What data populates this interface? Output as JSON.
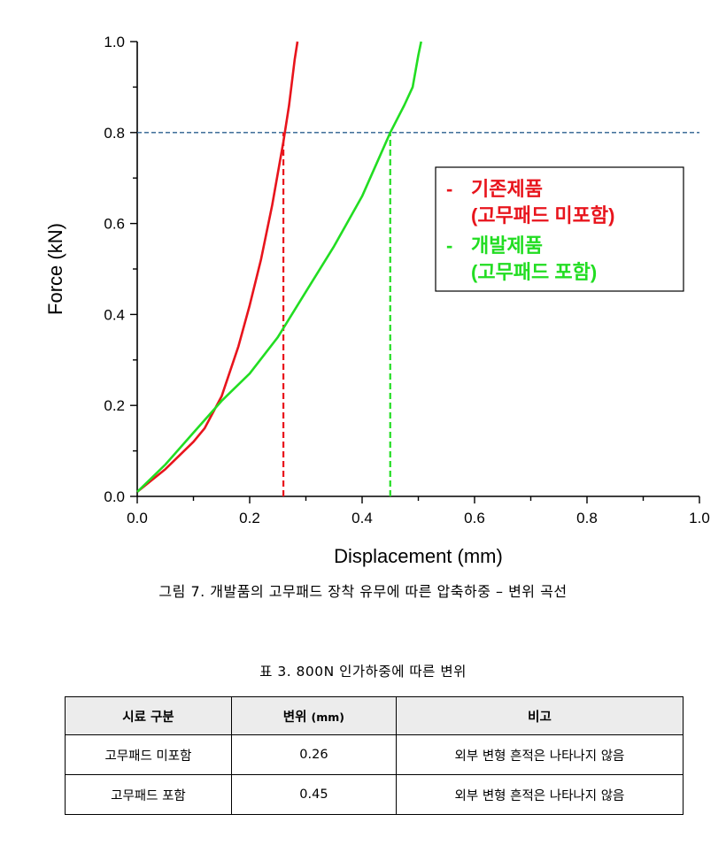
{
  "chart_data": {
    "type": "line",
    "xlabel": "Displacement (mm)",
    "ylabel": "Force (kN)",
    "xlim": [
      0.0,
      1.0
    ],
    "ylim": [
      0.0,
      1.0
    ],
    "x_ticks": [
      "0.0",
      "0.2",
      "0.4",
      "0.6",
      "0.8",
      "1.0"
    ],
    "y_ticks": [
      "0.0",
      "0.2",
      "0.4",
      "0.6",
      "0.8",
      "1.0"
    ],
    "grid": false,
    "legend_position": "right",
    "series": [
      {
        "name": "기존제품 (고무패드 미포함)",
        "legend_line1": "기존제품",
        "legend_line2": "(고무패드 미포함)",
        "color": "#e8141c",
        "points": [
          [
            0.0,
            0.01
          ],
          [
            0.05,
            0.06
          ],
          [
            0.1,
            0.12
          ],
          [
            0.12,
            0.15
          ],
          [
            0.15,
            0.22
          ],
          [
            0.18,
            0.33
          ],
          [
            0.2,
            0.42
          ],
          [
            0.22,
            0.52
          ],
          [
            0.24,
            0.64
          ],
          [
            0.26,
            0.78
          ],
          [
            0.27,
            0.86
          ],
          [
            0.28,
            0.96
          ],
          [
            0.285,
            1.0
          ]
        ]
      },
      {
        "name": "개발제품 (고무패드 포함)",
        "legend_line1": "개발제품",
        "legend_line2": "(고무패드 포함)",
        "color": "#22dd22",
        "points": [
          [
            0.0,
            0.01
          ],
          [
            0.05,
            0.07
          ],
          [
            0.1,
            0.14
          ],
          [
            0.15,
            0.21
          ],
          [
            0.2,
            0.27
          ],
          [
            0.25,
            0.35
          ],
          [
            0.3,
            0.45
          ],
          [
            0.35,
            0.55
          ],
          [
            0.4,
            0.66
          ],
          [
            0.45,
            0.8
          ],
          [
            0.475,
            0.86
          ],
          [
            0.49,
            0.9
          ],
          [
            0.5,
            0.97
          ],
          [
            0.505,
            1.0
          ]
        ]
      }
    ],
    "reference_lines": [
      {
        "orientation": "horizontal",
        "y": 0.8,
        "color": "#2a5f8f"
      },
      {
        "orientation": "vertical",
        "x": 0.26,
        "y_to": 0.8,
        "color": "#e8141c"
      },
      {
        "orientation": "vertical",
        "x": 0.45,
        "y_to": 0.8,
        "color": "#22dd22"
      }
    ]
  },
  "figure_caption": "그림 7. 개발품의 고무패드 장착 유무에 따른 압축하중 – 변위 곡선",
  "table": {
    "caption": "표 3. 800N 인가하중에 따른 변위",
    "headers": [
      "시료 구분",
      "변위",
      "(mm)",
      "비고"
    ],
    "rows": [
      [
        "고무패드 미포함",
        "0.26",
        "외부 변형 흔적은 나타나지 않음"
      ],
      [
        "고무패드 포함",
        "0.45",
        "외부 변형 흔적은 나타나지 않음"
      ]
    ]
  }
}
